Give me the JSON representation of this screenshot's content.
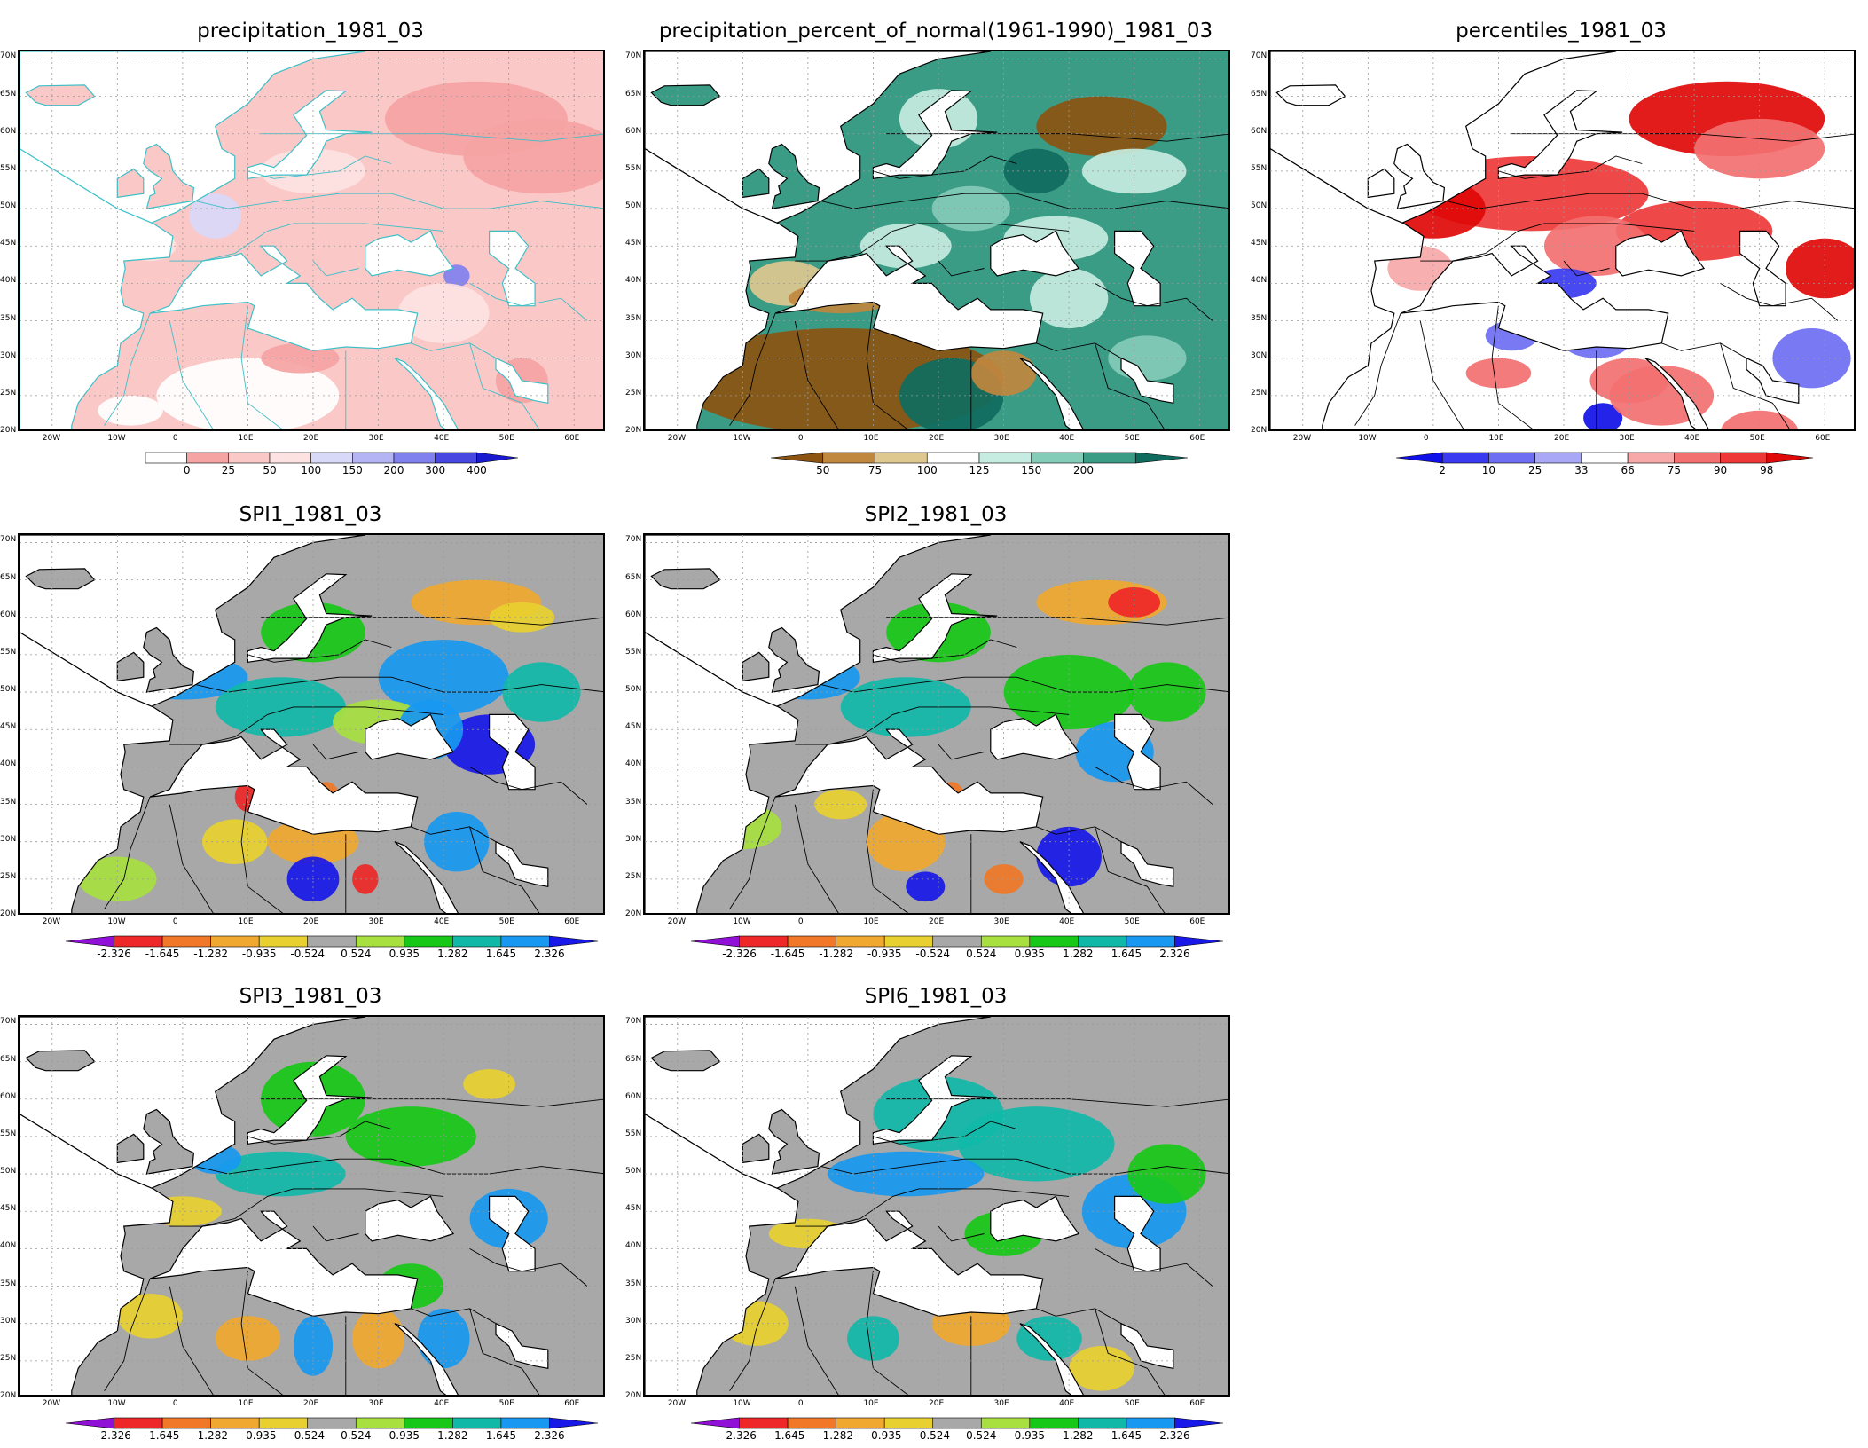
{
  "lat_labels": [
    "70N",
    "65N",
    "60N",
    "55N",
    "50N",
    "45N",
    "40N",
    "35N",
    "30N",
    "25N",
    "20N"
  ],
  "lon_labels": [
    "20W",
    "10W",
    "0",
    "10E",
    "20E",
    "30E",
    "40E",
    "50E",
    "60E"
  ],
  "panels": [
    {
      "id": "precip",
      "title": "precipitation_1981_03",
      "palette": "precip",
      "legend": {
        "ticks": [
          "0",
          "25",
          "50",
          "100",
          "150",
          "200",
          "300",
          "400"
        ],
        "colors": [
          "#ffffff",
          "#f5a3a3",
          "#fbc8c8",
          "#fde2e2",
          "#d8d8f8",
          "#b4b4f4",
          "#8080ee",
          "#4848e0",
          "#1a1ad0"
        ],
        "arrows": "right"
      }
    },
    {
      "id": "pct",
      "title": "precipitation_percent_of_normal(1961-1990)_1981_03",
      "palette": "pct",
      "legend": {
        "ticks": [
          "50",
          "75",
          "100",
          "125",
          "150",
          "200"
        ],
        "colors": [
          "#8c5410",
          "#c0873e",
          "#dfc88f",
          "#ffffff",
          "#c6ebe0",
          "#84cbb8",
          "#3b9c86",
          "#0f6b5e"
        ],
        "arrows": "both"
      }
    },
    {
      "id": "perc",
      "title": "percentiles_1981_03",
      "palette": "perc",
      "legend": {
        "ticks": [
          "2",
          "10",
          "25",
          "33",
          "66",
          "75",
          "90",
          "98"
        ],
        "colors": [
          "#1010e8",
          "#3a3af0",
          "#6e6ef2",
          "#a8a8f6",
          "#ffffff",
          "#f7a8a8",
          "#f37070",
          "#ee3838",
          "#e00808"
        ],
        "arrows": "both"
      }
    },
    {
      "id": "spi1",
      "title": "SPI1_1981_03",
      "palette": "spi",
      "legend": {
        "ticks": [
          "-2.326",
          "-1.645",
          "-1.282",
          "-0.935",
          "-0.524",
          "0.524",
          "0.935",
          "1.282",
          "1.645",
          "2.326"
        ],
        "colors": [
          "#9010d8",
          "#ee2828",
          "#f07828",
          "#f0a830",
          "#e8d030",
          "#a8a8a8",
          "#a8e040",
          "#18c818",
          "#10b8a8",
          "#1898f0",
          "#1818e8"
        ],
        "arrows": "both"
      }
    },
    {
      "id": "spi2",
      "title": "SPI2_1981_03",
      "palette": "spi",
      "legend": {
        "ticks": [
          "-2.326",
          "-1.645",
          "-1.282",
          "-0.935",
          "-0.524",
          "0.524",
          "0.935",
          "1.282",
          "1.645",
          "2.326"
        ],
        "colors": [
          "#9010d8",
          "#ee2828",
          "#f07828",
          "#f0a830",
          "#e8d030",
          "#a8a8a8",
          "#a8e040",
          "#18c818",
          "#10b8a8",
          "#1898f0",
          "#1818e8"
        ],
        "arrows": "both"
      }
    },
    {
      "id": "spi3",
      "title": "SPI3_1981_03",
      "palette": "spi",
      "legend": {
        "ticks": [
          "-2.326",
          "-1.645",
          "-1.282",
          "-0.935",
          "-0.524",
          "0.524",
          "0.935",
          "1.282",
          "1.645",
          "2.326"
        ],
        "colors": [
          "#9010d8",
          "#ee2828",
          "#f07828",
          "#f0a830",
          "#e8d030",
          "#a8a8a8",
          "#a8e040",
          "#18c818",
          "#10b8a8",
          "#1898f0",
          "#1818e8"
        ],
        "arrows": "both"
      }
    },
    {
      "id": "spi6",
      "title": "SPI6_1981_03",
      "palette": "spi",
      "legend": {
        "ticks": [
          "-2.326",
          "-1.645",
          "-1.282",
          "-0.935",
          "-0.524",
          "0.524",
          "0.935",
          "1.282",
          "1.645",
          "2.326"
        ],
        "colors": [
          "#9010d8",
          "#ee2828",
          "#f07828",
          "#f0a830",
          "#e8d030",
          "#a8a8a8",
          "#a8e040",
          "#18c818",
          "#10b8a8",
          "#1898f0",
          "#1818e8"
        ],
        "arrows": "both"
      }
    }
  ]
}
